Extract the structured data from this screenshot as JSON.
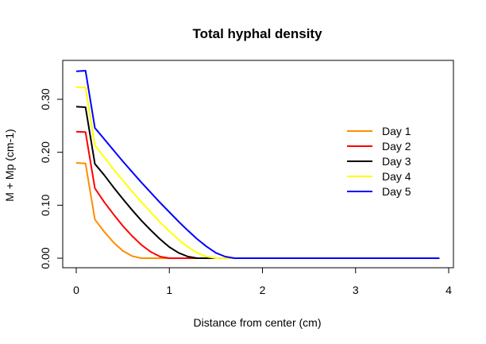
{
  "chart_data": {
    "type": "line",
    "title": "Total hyphal density",
    "xlabel": "Distance from center (cm)",
    "ylabel": "M + Mp (cm-1)",
    "xlim": [
      0,
      4
    ],
    "ylim": [
      0,
      0.35
    ],
    "xticks": [
      0,
      1,
      2,
      3,
      4
    ],
    "xtick_labels": [
      "0",
      "1",
      "2",
      "3",
      "4"
    ],
    "yticks": [
      0.0,
      0.1,
      0.2,
      0.3
    ],
    "ytick_labels": [
      "0.00",
      "0.10",
      "0.20",
      "0.30"
    ],
    "grid": false,
    "legend_position": "right",
    "series": [
      {
        "name": "Day 1",
        "color": "#ff8c00",
        "x": [
          0,
          0.1,
          0.2,
          0.3,
          0.4,
          0.5,
          0.6,
          0.7,
          0.8,
          0.9,
          1.0,
          1.1,
          1.2,
          1.5,
          2.0,
          3.0,
          3.9
        ],
        "y": [
          0.18,
          0.179,
          0.073,
          0.05,
          0.03,
          0.014,
          0.004,
          0.0,
          0.0,
          0.0,
          0.0,
          0.0,
          0.0,
          0.0,
          0.0,
          0.0,
          0.0
        ]
      },
      {
        "name": "Day 2",
        "color": "#ff0000",
        "x": [
          0,
          0.1,
          0.2,
          0.3,
          0.4,
          0.5,
          0.6,
          0.7,
          0.8,
          0.9,
          1.0,
          1.1,
          1.2,
          1.5,
          2.0,
          3.0,
          3.9
        ],
        "y": [
          0.239,
          0.238,
          0.132,
          0.106,
          0.083,
          0.061,
          0.042,
          0.025,
          0.012,
          0.003,
          0.0,
          0.0,
          0.0,
          0.0,
          0.0,
          0.0,
          0.0
        ]
      },
      {
        "name": "Day 3",
        "color": "#000000",
        "x": [
          0,
          0.1,
          0.2,
          0.3,
          0.4,
          0.5,
          0.6,
          0.7,
          0.8,
          0.9,
          1.0,
          1.1,
          1.2,
          1.3,
          1.4,
          1.5,
          2.0,
          3.0,
          3.9
        ],
        "y": [
          0.286,
          0.285,
          0.178,
          0.157,
          0.134,
          0.112,
          0.091,
          0.071,
          0.053,
          0.036,
          0.021,
          0.01,
          0.003,
          0.0,
          0.0,
          0.0,
          0.0,
          0.0,
          0.0
        ]
      },
      {
        "name": "Day 4",
        "color": "#ffff00",
        "x": [
          0,
          0.1,
          0.2,
          0.3,
          0.4,
          0.5,
          0.6,
          0.7,
          0.8,
          0.9,
          1.0,
          1.1,
          1.2,
          1.3,
          1.4,
          1.5,
          1.6,
          2.0,
          3.0,
          3.9
        ],
        "y": [
          0.323,
          0.322,
          0.213,
          0.191,
          0.168,
          0.147,
          0.126,
          0.106,
          0.087,
          0.068,
          0.051,
          0.035,
          0.021,
          0.01,
          0.003,
          0.0,
          0.0,
          0.0,
          0.0,
          0.0
        ]
      },
      {
        "name": "Day 5",
        "color": "#0000ff",
        "x": [
          0,
          0.1,
          0.2,
          0.3,
          0.4,
          0.5,
          0.6,
          0.7,
          0.8,
          0.9,
          1.0,
          1.1,
          1.2,
          1.3,
          1.4,
          1.5,
          1.6,
          1.7,
          2.0,
          3.0,
          3.9
        ],
        "y": [
          0.353,
          0.354,
          0.246,
          0.225,
          0.204,
          0.183,
          0.163,
          0.143,
          0.124,
          0.105,
          0.087,
          0.069,
          0.052,
          0.036,
          0.022,
          0.01,
          0.003,
          0.0,
          0.0,
          0.0,
          0.0
        ]
      }
    ]
  }
}
